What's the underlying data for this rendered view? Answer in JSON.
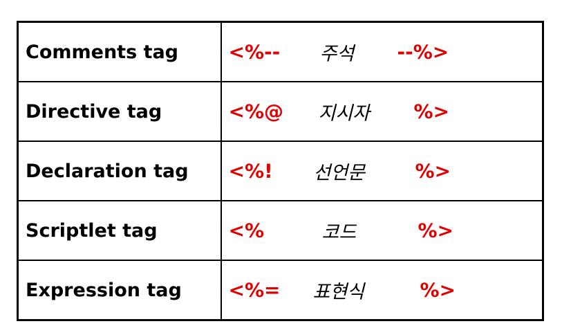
{
  "colors": {
    "delimiter": "#e00000",
    "text": "#000000",
    "border": "#000000",
    "background": "#ffffff"
  },
  "rows": [
    {
      "name": "Comments tag",
      "open": "<%--",
      "meaning": "주석",
      "close": "--%>"
    },
    {
      "name": "Directive tag",
      "open": "<%@",
      "meaning": "지시자",
      "close": "%>"
    },
    {
      "name": "Declaration tag",
      "open": "<%!",
      "meaning": "선언문",
      "close": "%>"
    },
    {
      "name": "Scriptlet tag",
      "open": "<%",
      "meaning": "코드",
      "close": "%>"
    },
    {
      "name": "Expression tag",
      "open": "<%=",
      "meaning": "표현식",
      "close": "%>"
    }
  ]
}
